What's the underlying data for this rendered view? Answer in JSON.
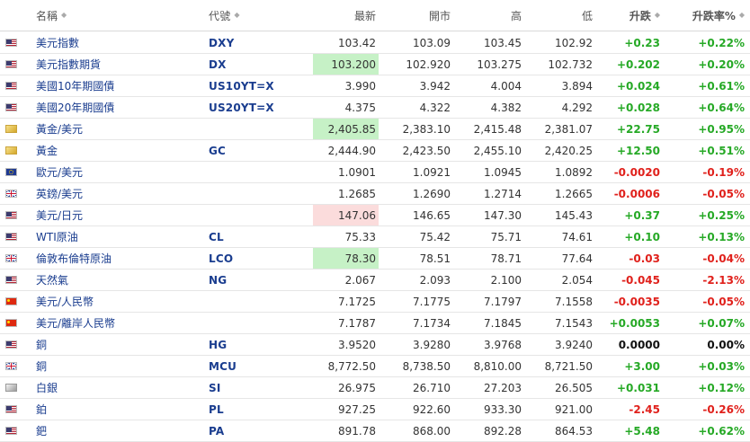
{
  "headers": {
    "name": "名稱",
    "code": "代號",
    "last": "最新",
    "open": "開市",
    "high": "高",
    "low": "低",
    "change": "升跌",
    "change_pct": "升跌率%",
    "sort_icon": "sort-icon"
  },
  "colors": {
    "up": "#26a926",
    "down": "#e0211c",
    "highlight_up": "#c6f1c6",
    "highlight_down": "#fbdcdc",
    "link": "#1a3d8f"
  },
  "rows": [
    {
      "flag": "us",
      "name": "美元指數",
      "code": "DXY",
      "last": "103.42",
      "open": "103.09",
      "high": "103.45",
      "low": "102.92",
      "change": "+0.23",
      "change_pct": "+0.22%",
      "dir": "up",
      "highlight": ""
    },
    {
      "flag": "us",
      "name": "美元指數期貨",
      "code": "DX",
      "last": "103.200",
      "open": "102.920",
      "high": "103.275",
      "low": "102.732",
      "change": "+0.202",
      "change_pct": "+0.20%",
      "dir": "up",
      "highlight": "up"
    },
    {
      "flag": "us",
      "name": "美國10年期國債",
      "code": "US10YT=X",
      "last": "3.990",
      "open": "3.942",
      "high": "4.004",
      "low": "3.894",
      "change": "+0.024",
      "change_pct": "+0.61%",
      "dir": "up",
      "highlight": ""
    },
    {
      "flag": "us",
      "name": "美國20年期國債",
      "code": "US20YT=X",
      "last": "4.375",
      "open": "4.322",
      "high": "4.382",
      "low": "4.292",
      "change": "+0.028",
      "change_pct": "+0.64%",
      "dir": "up",
      "highlight": ""
    },
    {
      "flag": "gold",
      "name": "黃金/美元",
      "code": "",
      "last": "2,405.85",
      "open": "2,383.10",
      "high": "2,415.48",
      "low": "2,381.07",
      "change": "+22.75",
      "change_pct": "+0.95%",
      "dir": "up",
      "highlight": "up"
    },
    {
      "flag": "gold",
      "name": "黃金",
      "code": "GC",
      "last": "2,444.90",
      "open": "2,423.50",
      "high": "2,455.10",
      "low": "2,420.25",
      "change": "+12.50",
      "change_pct": "+0.51%",
      "dir": "up",
      "highlight": ""
    },
    {
      "flag": "eu",
      "name": "歐元/美元",
      "code": "",
      "last": "1.0901",
      "open": "1.0921",
      "high": "1.0945",
      "low": "1.0892",
      "change": "-0.0020",
      "change_pct": "-0.19%",
      "dir": "down",
      "highlight": ""
    },
    {
      "flag": "uk",
      "name": "英鎊/美元",
      "code": "",
      "last": "1.2685",
      "open": "1.2690",
      "high": "1.2714",
      "low": "1.2665",
      "change": "-0.0006",
      "change_pct": "-0.05%",
      "dir": "down",
      "highlight": ""
    },
    {
      "flag": "us",
      "name": "美元/日元",
      "code": "",
      "last": "147.06",
      "open": "146.65",
      "high": "147.30",
      "low": "145.43",
      "change": "+0.37",
      "change_pct": "+0.25%",
      "dir": "up",
      "highlight": "down"
    },
    {
      "flag": "us",
      "name": "WTI原油",
      "code": "CL",
      "last": "75.33",
      "open": "75.42",
      "high": "75.71",
      "low": "74.61",
      "change": "+0.10",
      "change_pct": "+0.13%",
      "dir": "up",
      "highlight": ""
    },
    {
      "flag": "uk",
      "name": "倫敦布倫特原油",
      "code": "LCO",
      "last": "78.30",
      "open": "78.51",
      "high": "78.71",
      "low": "77.64",
      "change": "-0.03",
      "change_pct": "-0.04%",
      "dir": "down",
      "highlight": "up"
    },
    {
      "flag": "us",
      "name": "天然氣",
      "code": "NG",
      "last": "2.067",
      "open": "2.093",
      "high": "2.100",
      "low": "2.054",
      "change": "-0.045",
      "change_pct": "-2.13%",
      "dir": "down",
      "highlight": ""
    },
    {
      "flag": "cn",
      "name": "美元/人民幣",
      "code": "",
      "last": "7.1725",
      "open": "7.1775",
      "high": "7.1797",
      "low": "7.1558",
      "change": "-0.0035",
      "change_pct": "-0.05%",
      "dir": "down",
      "highlight": ""
    },
    {
      "flag": "cn",
      "name": "美元/離岸人民幣",
      "code": "",
      "last": "7.1787",
      "open": "7.1734",
      "high": "7.1845",
      "low": "7.1543",
      "change": "+0.0053",
      "change_pct": "+0.07%",
      "dir": "up",
      "highlight": ""
    },
    {
      "flag": "us",
      "name": "銅",
      "code": "HG",
      "last": "3.9520",
      "open": "3.9280",
      "high": "3.9768",
      "low": "3.9240",
      "change": "0.0000",
      "change_pct": "0.00%",
      "dir": "flat",
      "highlight": ""
    },
    {
      "flag": "uk",
      "name": "銅",
      "code": "MCU",
      "last": "8,772.50",
      "open": "8,738.50",
      "high": "8,810.00",
      "low": "8,721.50",
      "change": "+3.00",
      "change_pct": "+0.03%",
      "dir": "up",
      "highlight": ""
    },
    {
      "flag": "silver",
      "name": "白銀",
      "code": "SI",
      "last": "26.975",
      "open": "26.710",
      "high": "27.203",
      "low": "26.505",
      "change": "+0.031",
      "change_pct": "+0.12%",
      "dir": "up",
      "highlight": ""
    },
    {
      "flag": "us",
      "name": "鉑",
      "code": "PL",
      "last": "927.25",
      "open": "922.60",
      "high": "933.30",
      "low": "921.00",
      "change": "-2.45",
      "change_pct": "-0.26%",
      "dir": "down",
      "highlight": ""
    },
    {
      "flag": "us",
      "name": "鈀",
      "code": "PA",
      "last": "891.78",
      "open": "868.00",
      "high": "892.28",
      "low": "864.53",
      "change": "+5.48",
      "change_pct": "+0.62%",
      "dir": "up",
      "highlight": ""
    }
  ]
}
